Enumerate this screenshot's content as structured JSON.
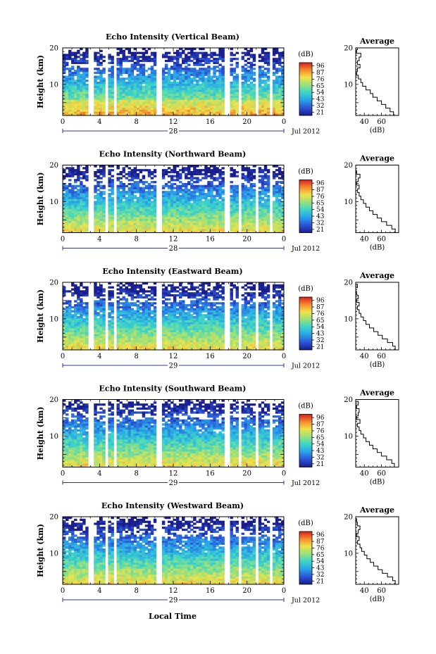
{
  "figure": {
    "x_axis_label": "Local Time",
    "month_label": "Jul 2012",
    "colorbar_unit": "(dB)",
    "colorbar_ticks": [
      "96",
      "87",
      "76",
      "65",
      "54",
      "43",
      "32",
      "21"
    ],
    "avg_title": "Average",
    "avg_xlabel": "(dB)",
    "avg_xticks": [
      "40",
      "60"
    ]
  },
  "chart_data": [
    {
      "type": "heatmap",
      "title": "Echo Intensity (Vertical Beam)",
      "ylabel": "Height (km)",
      "xticks": [
        "0",
        "4",
        "8",
        "12",
        "16",
        "20",
        "0"
      ],
      "yticks": [
        "10",
        "20"
      ],
      "date_label": "28",
      "x_range_hours": [
        0,
        24
      ],
      "y_range_km": [
        1.5,
        20
      ],
      "colorbar_range_db": [
        21,
        96
      ],
      "colormap": "jet",
      "gaps_hours": [
        [
          2.9,
          3.4
        ],
        [
          4.6,
          5.0
        ],
        [
          5.4,
          5.8
        ],
        [
          10.2,
          10.8
        ],
        [
          17.6,
          18.0
        ],
        [
          19.0,
          19.4
        ],
        [
          20.9,
          21.3
        ],
        [
          22.4,
          22.8
        ]
      ],
      "avg_profile": {
        "x_label": "(dB)",
        "x_range": [
          30,
          80
        ],
        "y_range_km": [
          1.5,
          20
        ],
        "points": [
          [
            74,
            2
          ],
          [
            70,
            3
          ],
          [
            65,
            4
          ],
          [
            60,
            5
          ],
          [
            55,
            6
          ],
          [
            50,
            7
          ],
          [
            47,
            8
          ],
          [
            42,
            9
          ],
          [
            38,
            10
          ],
          [
            36,
            11
          ],
          [
            33,
            12
          ],
          [
            31,
            13
          ],
          [
            32,
            14
          ],
          [
            35,
            15
          ],
          [
            32,
            16
          ],
          [
            34,
            17
          ],
          [
            36,
            18
          ],
          [
            31,
            19
          ],
          [
            32,
            20
          ]
        ]
      }
    },
    {
      "type": "heatmap",
      "title": "Echo Intensity (Northward Beam)",
      "ylabel": "Height (km)",
      "xticks": [
        "0",
        "4",
        "8",
        "12",
        "16",
        "20",
        "0"
      ],
      "yticks": [
        "10",
        "20"
      ],
      "date_label": "28",
      "x_range_hours": [
        0,
        24
      ],
      "y_range_km": [
        1.5,
        20
      ],
      "colorbar_range_db": [
        21,
        96
      ],
      "colormap": "jet",
      "gaps_hours": [
        [
          2.9,
          3.4
        ],
        [
          4.6,
          5.0
        ],
        [
          5.4,
          5.8
        ],
        [
          10.2,
          10.8
        ],
        [
          17.6,
          18.0
        ],
        [
          19.0,
          19.4
        ],
        [
          20.9,
          21.3
        ],
        [
          22.4,
          22.8
        ]
      ],
      "avg_profile": {
        "x_label": "(dB)",
        "x_range": [
          30,
          80
        ],
        "y_range_km": [
          1.5,
          20
        ],
        "points": [
          [
            76,
            2
          ],
          [
            72,
            3
          ],
          [
            66,
            4
          ],
          [
            60,
            5
          ],
          [
            55,
            6
          ],
          [
            50,
            7
          ],
          [
            46,
            8
          ],
          [
            42,
            9
          ],
          [
            39,
            10
          ],
          [
            36,
            11
          ],
          [
            34,
            12
          ],
          [
            32,
            13
          ],
          [
            34,
            14
          ],
          [
            31,
            15
          ],
          [
            33,
            16
          ],
          [
            35,
            17
          ],
          [
            31,
            18
          ],
          [
            30,
            19
          ],
          [
            30,
            20
          ]
        ]
      }
    },
    {
      "type": "heatmap",
      "title": "Echo Intensity (Eastward Beam)",
      "ylabel": "Height (km)",
      "xticks": [
        "0",
        "4",
        "8",
        "12",
        "16",
        "20",
        "0"
      ],
      "yticks": [
        "10",
        "20"
      ],
      "date_label": "29",
      "x_range_hours": [
        0,
        24
      ],
      "y_range_km": [
        1.5,
        20
      ],
      "colorbar_range_db": [
        21,
        96
      ],
      "colormap": "jet",
      "gaps_hours": [
        [
          2.9,
          3.4
        ],
        [
          4.6,
          5.0
        ],
        [
          5.4,
          5.8
        ],
        [
          10.2,
          10.8
        ],
        [
          17.6,
          18.0
        ],
        [
          19.0,
          19.4
        ],
        [
          20.9,
          21.3
        ],
        [
          22.4,
          22.8
        ]
      ],
      "avg_profile": {
        "x_label": "(dB)",
        "x_range": [
          30,
          80
        ],
        "y_range_km": [
          1.5,
          20
        ],
        "points": [
          [
            76,
            2
          ],
          [
            73,
            3
          ],
          [
            67,
            4
          ],
          [
            61,
            5
          ],
          [
            56,
            6
          ],
          [
            51,
            7
          ],
          [
            46,
            8
          ],
          [
            42,
            9
          ],
          [
            39,
            10
          ],
          [
            36,
            11
          ],
          [
            34,
            12
          ],
          [
            32,
            13
          ],
          [
            34,
            14
          ],
          [
            31,
            15
          ],
          [
            33,
            16
          ],
          [
            31,
            17
          ],
          [
            30,
            18
          ],
          [
            32,
            19
          ],
          [
            30,
            20
          ]
        ]
      }
    },
    {
      "type": "heatmap",
      "title": "Echo Intensity (Southward Beam)",
      "ylabel": "Height (km)",
      "xticks": [
        "0",
        "4",
        "8",
        "12",
        "16",
        "20",
        "0"
      ],
      "yticks": [
        "10",
        "20"
      ],
      "date_label": "29",
      "x_range_hours": [
        0,
        24
      ],
      "y_range_km": [
        1.5,
        20
      ],
      "colorbar_range_db": [
        21,
        96
      ],
      "colormap": "jet",
      "gaps_hours": [
        [
          2.9,
          3.4
        ],
        [
          4.6,
          5.0
        ],
        [
          5.4,
          5.8
        ],
        [
          10.2,
          10.8
        ],
        [
          17.6,
          18.0
        ],
        [
          19.0,
          19.4
        ],
        [
          20.9,
          21.3
        ],
        [
          22.4,
          22.8
        ]
      ],
      "avg_profile": {
        "x_label": "(dB)",
        "x_range": [
          30,
          80
        ],
        "y_range_km": [
          1.5,
          20
        ],
        "points": [
          [
            75,
            2
          ],
          [
            72,
            3
          ],
          [
            66,
            4
          ],
          [
            60,
            5
          ],
          [
            55,
            6
          ],
          [
            50,
            7
          ],
          [
            46,
            8
          ],
          [
            42,
            9
          ],
          [
            39,
            10
          ],
          [
            36,
            11
          ],
          [
            34,
            12
          ],
          [
            32,
            13
          ],
          [
            35,
            14
          ],
          [
            31,
            15
          ],
          [
            33,
            16
          ],
          [
            34,
            17
          ],
          [
            31,
            18
          ],
          [
            33,
            19
          ],
          [
            30,
            20
          ]
        ]
      }
    },
    {
      "type": "heatmap",
      "title": "Echo Intensity (Westward Beam)",
      "ylabel": "Height (km)",
      "xticks": [
        "0",
        "4",
        "8",
        "12",
        "16",
        "20",
        "0"
      ],
      "yticks": [
        "10",
        "20"
      ],
      "date_label": "29",
      "x_range_hours": [
        0,
        24
      ],
      "y_range_km": [
        1.5,
        20
      ],
      "colorbar_range_db": [
        21,
        96
      ],
      "colormap": "jet",
      "gaps_hours": [
        [
          2.9,
          3.4
        ],
        [
          4.6,
          5.0
        ],
        [
          5.4,
          5.8
        ],
        [
          10.2,
          10.8
        ],
        [
          17.6,
          18.0
        ],
        [
          19.0,
          19.4
        ],
        [
          20.9,
          21.3
        ],
        [
          22.4,
          22.8
        ]
      ],
      "avg_profile": {
        "x_label": "(dB)",
        "x_range": [
          30,
          80
        ],
        "y_range_km": [
          1.5,
          20
        ],
        "points": [
          [
            76,
            2
          ],
          [
            73,
            3
          ],
          [
            67,
            4
          ],
          [
            61,
            5
          ],
          [
            56,
            6
          ],
          [
            51,
            7
          ],
          [
            47,
            8
          ],
          [
            43,
            9
          ],
          [
            40,
            10
          ],
          [
            37,
            11
          ],
          [
            35,
            12
          ],
          [
            32,
            13
          ],
          [
            34,
            14
          ],
          [
            31,
            15
          ],
          [
            33,
            16
          ],
          [
            35,
            17
          ],
          [
            32,
            18
          ],
          [
            31,
            19
          ],
          [
            30,
            20
          ]
        ]
      }
    }
  ]
}
